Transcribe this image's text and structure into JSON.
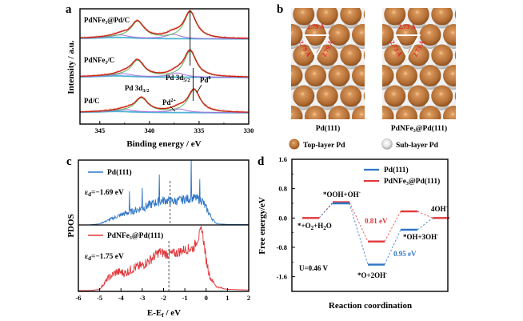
{
  "figure": {
    "panel_labels": [
      "a",
      "b",
      "c",
      "d"
    ]
  },
  "chart_data": [
    {
      "panel": "a",
      "type": "line",
      "title": "",
      "xlabel": "Binding energy / eV",
      "ylabel": "Intensity / a.u.",
      "xlim": [
        347,
        330
      ],
      "x_reversed": true,
      "xticks": [
        345,
        340,
        335,
        330
      ],
      "xtick_labels": [
        "345",
        "340",
        "335",
        "330"
      ],
      "grid": false,
      "series": [
        {
          "name": "PdNFe3@Pd/C",
          "label": "PdNFe₃@Pd/C",
          "peak_3d52": 335.9,
          "peak_3d32": 341.2,
          "pd2_peak": 337.6
        },
        {
          "name": "PdNFe3/C",
          "label": "PdNFe₃/C",
          "peak_3d52": 335.9,
          "peak_3d32": 341.2,
          "pd2_peak": 337.2
        },
        {
          "name": "Pd/C",
          "label": "Pd/C",
          "peak_3d52": 335.5,
          "peak_3d32": 340.8,
          "pd2_peak": 337.0
        }
      ],
      "components": [
        "raw data",
        "fit envelope",
        "Pd0 component",
        "Pd2+ component",
        "background"
      ],
      "annotations": {
        "pd3d32": "Pd 3d",
        "pd3d32_sub": "3/2",
        "pd3d52": "Pd 3d",
        "pd3d52_sub": "5/2",
        "pd2": "Pd",
        "pd2_sup": "2+",
        "pd0": "Pd",
        "pd0_sup": "0"
      },
      "reference_lines": [
        335.9,
        335.6
      ]
    },
    {
      "panel": "b",
      "type": "other",
      "images": [
        {
          "caption": "Pd(111)",
          "bond_length": "2.79 Å"
        },
        {
          "caption": "PdNFe₃@Pd(111)",
          "bond_length": "2.73 Å"
        }
      ],
      "legend": [
        {
          "label": "Top-layer Pd",
          "color": "#b9773a"
        },
        {
          "label": "Sub-layer Pd",
          "color": "#d8d8d8"
        }
      ]
    },
    {
      "panel": "c",
      "type": "line",
      "xlabel": "E-E",
      "xlabel_sub": "f",
      "xlabel_unit": " / eV",
      "ylabel": "PDOS",
      "xlim": [
        -6,
        2
      ],
      "xticks": [
        -6,
        -5,
        -4,
        -3,
        -2,
        -1,
        0,
        1,
        2
      ],
      "xtick_labels": [
        "-6",
        "-5",
        "-4",
        "-3",
        "-2",
        "-1",
        "0",
        "1",
        "2"
      ],
      "grid": false,
      "series": [
        {
          "name": "Pd(111)",
          "color": "#2f76c8",
          "d_band_center": -1.69,
          "d_band_label": "ε",
          "d_band_sub": "d",
          "d_band_value": "=−1.69 eV",
          "envelope_x": [
            -6,
            -5.5,
            -5,
            -4.5,
            -4,
            -3.5,
            -3,
            -2.5,
            -2,
            -1.5,
            -1,
            -0.5,
            -0.2,
            0,
            0.3,
            0.5,
            1,
            2
          ],
          "envelope_y": [
            0,
            0,
            0.02,
            0.1,
            0.18,
            0.24,
            0.3,
            0.38,
            0.44,
            0.42,
            0.46,
            0.48,
            0.44,
            0.3,
            0.1,
            0.02,
            0.01,
            0.01
          ],
          "spikes": [
            [
              -3.6,
              0.6
            ],
            [
              -3.0,
              0.66
            ],
            [
              -2.2,
              0.9
            ],
            [
              -0.7,
              1.22
            ],
            [
              -0.3,
              0.82
            ]
          ]
        },
        {
          "name": "PdNFe3@Pd(111)",
          "label": "PdNFe₃@Pd(111)",
          "color": "#e0383c",
          "d_band_center": -1.75,
          "d_band_label": "ε",
          "d_band_sub": "d",
          "d_band_value": "=−1.75 eV",
          "envelope_x": [
            -6,
            -5.5,
            -5,
            -4.6,
            -4.2,
            -3.8,
            -3.4,
            -3,
            -2.6,
            -2.2,
            -1.8,
            -1.4,
            -1,
            -0.6,
            -0.3,
            -0.2,
            0,
            0.2,
            0.5,
            1,
            2
          ],
          "envelope_y": [
            0,
            0,
            0.02,
            0.2,
            0.3,
            0.28,
            0.36,
            0.4,
            0.5,
            0.62,
            0.58,
            0.6,
            0.66,
            0.68,
            0.9,
            1.0,
            0.5,
            0.2,
            0.06,
            0.02,
            0.01
          ]
        }
      ],
      "vertical_lines": [
        -1.69,
        -1.75
      ]
    },
    {
      "panel": "d",
      "type": "line",
      "title": "",
      "xlabel": "Reaction coordination",
      "ylabel": "Free energy/eV",
      "ylim": [
        -2.0,
        1.6
      ],
      "yticks": [
        1.6,
        0.8,
        0.0,
        -0.8,
        -1.6
      ],
      "ytick_labels": [
        "1.6",
        "0.8",
        "0.0",
        "-0.8",
        "-1.6"
      ],
      "grid": false,
      "legend_position": "top-right",
      "steps": [
        "*+O2+H2O",
        "*OOH+OH-",
        "*O+2OH-",
        "*OH+3OH-",
        "4OH-"
      ],
      "series": [
        {
          "name": "Pd(111)",
          "color": "#2f76c8",
          "values": [
            0.0,
            0.4,
            -1.27,
            -0.32,
            0.0
          ]
        },
        {
          "name": "PdNFe3@Pd(111)",
          "label": "PdNFe₃@Pd(111)",
          "color": "#e0383c",
          "values": [
            0.0,
            0.43,
            -0.64,
            0.18,
            0.0
          ]
        }
      ],
      "annotations": [
        {
          "text": "0.81 eV",
          "color": "#e0383c"
        },
        {
          "text": "0.95 eV",
          "color": "#2f76c8"
        },
        {
          "text": "U=0.46 V",
          "color": "#000000"
        }
      ],
      "step_labels": [
        {
          "main": "*+O",
          "sub": "2",
          "rest": "+H",
          "sub2": "2",
          "end": "O"
        },
        {
          "main": "*OOH+OH",
          "sup": "-"
        },
        {
          "main": "*O+2OH",
          "sup": "-"
        },
        {
          "main": "*OH+3OH",
          "sup": "-"
        },
        {
          "main": "4OH",
          "sup": "-"
        }
      ]
    }
  ]
}
